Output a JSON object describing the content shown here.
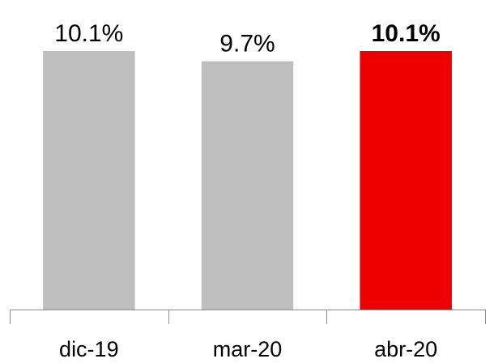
{
  "chart_data": {
    "type": "bar",
    "categories": [
      "dic-19",
      "mar-20",
      "abr-20"
    ],
    "values": [
      10.1,
      9.7,
      10.1
    ],
    "value_labels": [
      "10.1%",
      "9.7%",
      "10.1%"
    ],
    "colors": [
      "#bfbfbf",
      "#bfbfbf",
      "#ee0000"
    ],
    "value_label_bold": [
      false,
      false,
      true
    ]
  }
}
